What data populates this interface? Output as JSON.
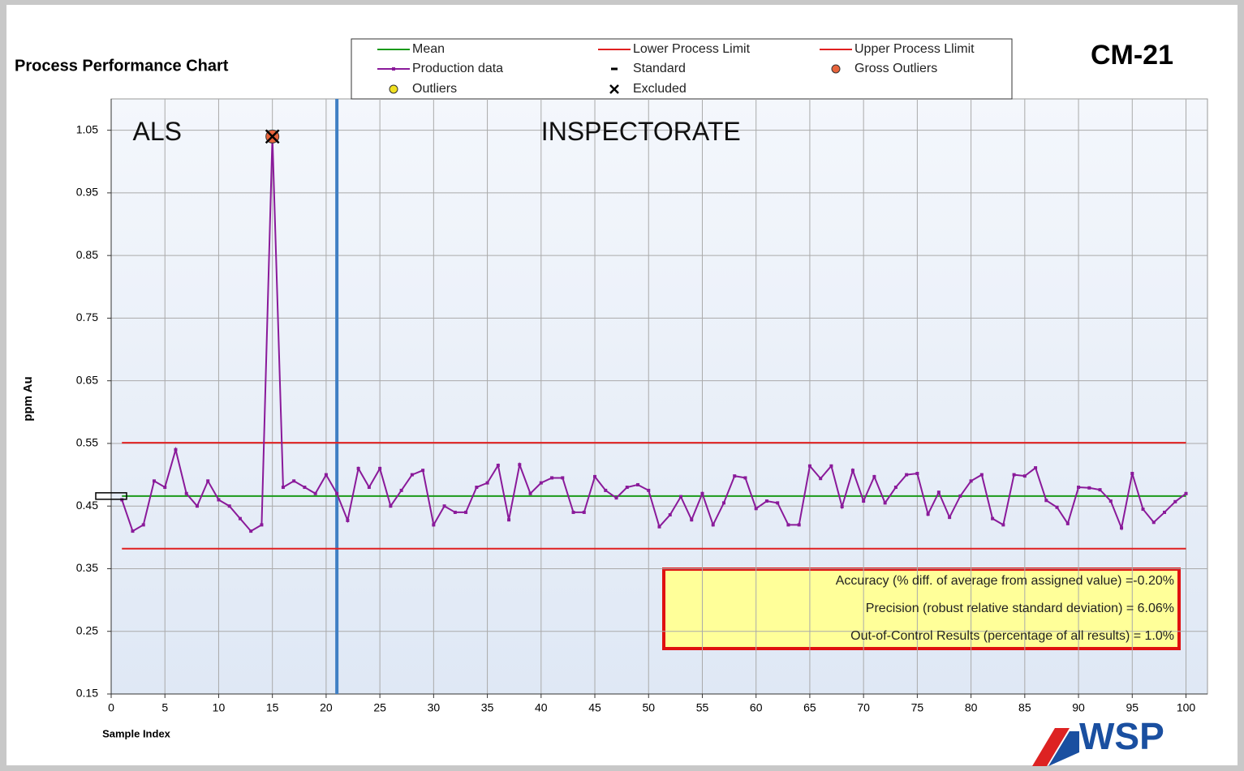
{
  "chart_data": {
    "type": "line",
    "title": "Process Performance Chart",
    "code": "CM-21",
    "logo": "WSP",
    "xlabel": "Sample Index",
    "ylabel": "ppm Au",
    "xlim": [
      0,
      102
    ],
    "ylim": [
      0.15,
      1.1
    ],
    "xticks": [
      0,
      5,
      10,
      15,
      20,
      25,
      30,
      35,
      40,
      45,
      50,
      55,
      60,
      65,
      70,
      75,
      80,
      85,
      90,
      95,
      100
    ],
    "yticks": [
      0.15,
      0.25,
      0.35,
      0.45,
      0.55,
      0.65,
      0.75,
      0.85,
      0.95,
      1.05
    ],
    "grid": true,
    "series": [
      {
        "name": "Mean",
        "color": "#1a9a1a",
        "x": [
          1,
          100
        ],
        "values": [
          0.466,
          0.466
        ]
      },
      {
        "name": "Lower Process Limit",
        "color": "#e02020",
        "x": [
          1,
          100
        ],
        "values": [
          0.382,
          0.382
        ]
      },
      {
        "name": "Upper Process Llimit",
        "color": "#e02020",
        "x": [
          1,
          100
        ],
        "values": [
          0.551,
          0.551
        ]
      },
      {
        "name": "Production data",
        "color": "#8a1a9a",
        "x": [
          1,
          2,
          3,
          4,
          5,
          6,
          7,
          8,
          9,
          10,
          11,
          12,
          13,
          14,
          15,
          16,
          17,
          18,
          19,
          20,
          21,
          22,
          23,
          24,
          25,
          26,
          27,
          28,
          29,
          30,
          31,
          32,
          33,
          34,
          35,
          36,
          37,
          38,
          39,
          40,
          41,
          42,
          43,
          44,
          45,
          46,
          47,
          48,
          49,
          50,
          51,
          52,
          53,
          54,
          55,
          56,
          57,
          58,
          59,
          60,
          61,
          62,
          63,
          64,
          65,
          66,
          67,
          68,
          69,
          70,
          71,
          72,
          73,
          74,
          75,
          76,
          77,
          78,
          79,
          80,
          81,
          82,
          83,
          84,
          85,
          86,
          87,
          88,
          89,
          90,
          91,
          92,
          93,
          94,
          95,
          96,
          97,
          98,
          99,
          100
        ],
        "values": [
          0.46,
          0.41,
          0.42,
          0.49,
          0.48,
          0.54,
          0.47,
          0.45,
          0.49,
          0.46,
          0.45,
          0.43,
          0.41,
          0.42,
          1.04,
          0.48,
          0.49,
          0.48,
          0.47,
          0.5,
          0.47,
          0.427,
          0.51,
          0.48,
          0.51,
          0.45,
          0.475,
          0.5,
          0.507,
          0.42,
          0.45,
          0.44,
          0.44,
          0.48,
          0.487,
          0.515,
          0.428,
          0.516,
          0.47,
          0.487,
          0.495,
          0.495,
          0.44,
          0.44,
          0.497,
          0.475,
          0.463,
          0.48,
          0.484,
          0.475,
          0.417,
          0.436,
          0.465,
          0.428,
          0.47,
          0.42,
          0.455,
          0.498,
          0.495,
          0.446,
          0.458,
          0.455,
          0.42,
          0.42,
          0.514,
          0.494,
          0.514,
          0.449,
          0.507,
          0.458,
          0.497,
          0.455,
          0.48,
          0.5,
          0.502,
          0.437,
          0.472,
          0.432,
          0.466,
          0.49,
          0.5,
          0.43,
          0.42,
          0.5,
          0.498,
          0.511,
          0.459,
          0.448,
          0.422,
          0.48,
          0.479,
          0.476,
          0.458,
          0.415,
          0.502,
          0.445,
          0.424,
          0.44,
          0.457,
          0.47
        ]
      },
      {
        "name": "Standard",
        "color": "#000000",
        "x": [
          0
        ],
        "values": [
          0.466
        ]
      },
      {
        "name": "Gross Outliers",
        "color": "#e8643c",
        "x": [
          15
        ],
        "values": [
          1.04
        ]
      },
      {
        "name": "Outliers",
        "color": "#f0e020",
        "x": [],
        "values": []
      },
      {
        "name": "Excluded",
        "color": "#000000",
        "x": [
          15
        ],
        "values": [
          1.04
        ]
      }
    ],
    "dividers": [
      21
    ],
    "divider_color": "#3f7fc4",
    "annotations": [
      {
        "text": "ALS",
        "x": 2,
        "y": 1.045
      },
      {
        "text": "INSPECTORATE",
        "x": 40,
        "y": 1.045
      }
    ],
    "stats": [
      "Accuracy (% diff. of average from assigned value) =-0.20%",
      "Precision (robust relative standard deviation) = 6.06%",
      "Out-of-Control Results (percentage of all results) = 1.0%"
    ]
  }
}
